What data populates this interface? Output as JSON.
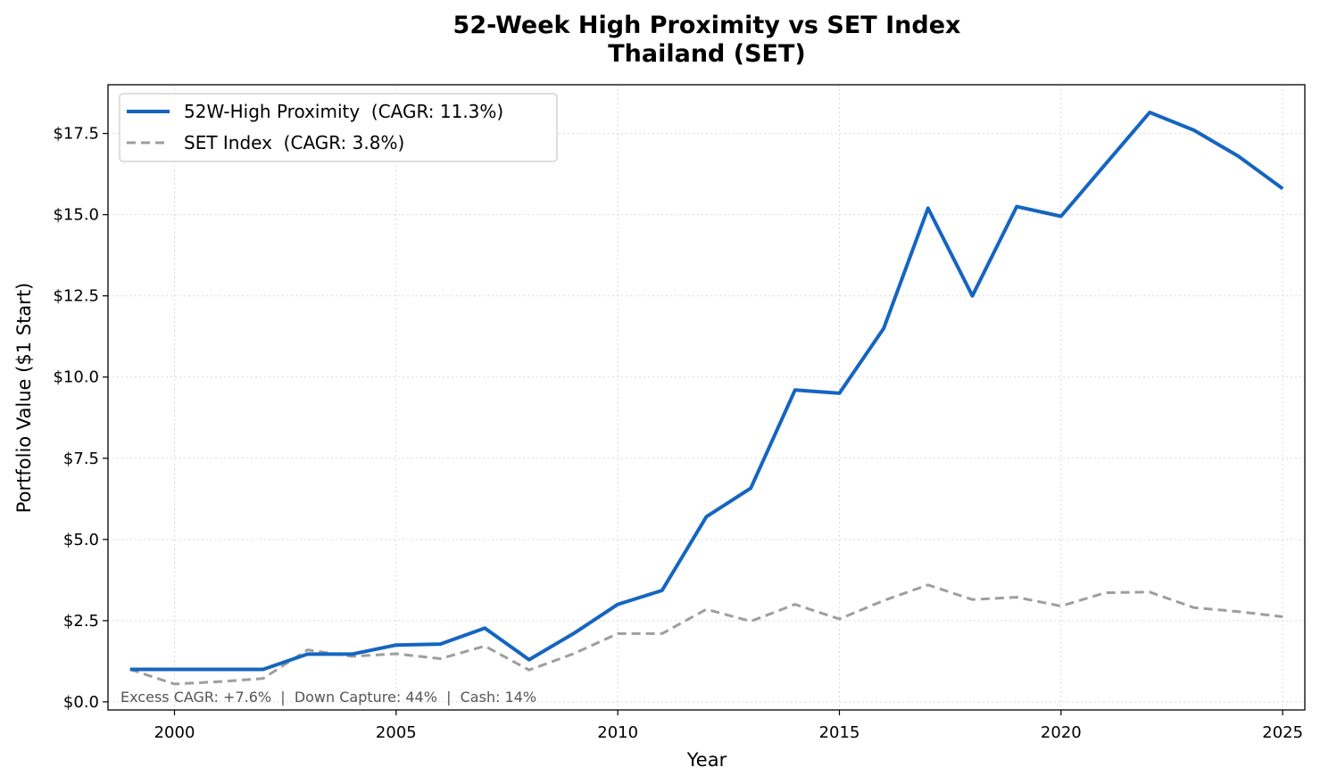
{
  "chart_data": {
    "type": "line",
    "title": "52-Week High Proximity vs SET Index",
    "subtitle": "Thailand (SET)",
    "xlabel": "Year",
    "ylabel": "Portfolio Value ($1 Start)",
    "xlim": [
      1998.5,
      2025.5
    ],
    "ylim": [
      -0.25,
      19.0
    ],
    "x_ticks": [
      2000,
      2005,
      2010,
      2015,
      2020,
      2025
    ],
    "x_tick_labels": [
      "2000",
      "2005",
      "2010",
      "2015",
      "2020",
      "2025"
    ],
    "y_ticks": [
      0,
      2.5,
      5,
      7.5,
      10,
      12.5,
      15,
      17.5
    ],
    "y_tick_labels": [
      "$0.0",
      "$2.5",
      "$5.0",
      "$7.5",
      "$10.0",
      "$12.5",
      "$15.0",
      "$17.5"
    ],
    "grid": true,
    "legend_position": "top-left",
    "x": [
      1999,
      2000,
      2001,
      2002,
      2003,
      2004,
      2005,
      2006,
      2007,
      2008,
      2009,
      2010,
      2011,
      2012,
      2013,
      2014,
      2015,
      2016,
      2017,
      2018,
      2019,
      2020,
      2021,
      2022,
      2023,
      2024,
      2025
    ],
    "series": [
      {
        "name": "52W-High Proximity  (CAGR: 11.3%)",
        "color": "#1565c0",
        "style": "solid",
        "values": [
          1.0,
          1.0,
          1.0,
          1.0,
          1.47,
          1.47,
          1.75,
          1.78,
          2.27,
          1.3,
          2.1,
          3.0,
          3.43,
          5.7,
          6.58,
          9.6,
          9.5,
          11.5,
          15.2,
          12.5,
          15.25,
          14.95,
          16.55,
          18.15,
          17.6,
          16.8,
          15.8
        ]
      },
      {
        "name": "SET Index  (CAGR: 3.8%)",
        "color": "#9e9e9e",
        "style": "dashed",
        "values": [
          1.0,
          0.55,
          0.62,
          0.72,
          1.6,
          1.4,
          1.48,
          1.33,
          1.72,
          0.98,
          1.48,
          2.1,
          2.1,
          2.85,
          2.48,
          3.0,
          2.55,
          3.12,
          3.6,
          3.15,
          3.22,
          2.95,
          3.36,
          3.38,
          2.9,
          2.78,
          2.62
        ]
      }
    ],
    "annotation": "Excess CAGR: +7.6%  |  Down Capture: 44%  |  Cash: 14%"
  }
}
